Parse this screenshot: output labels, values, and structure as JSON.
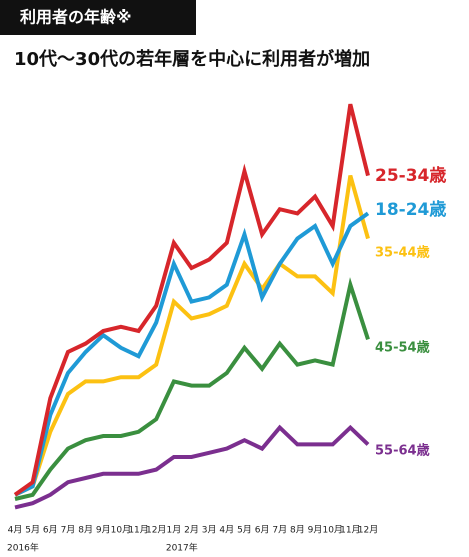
{
  "chart_data": {
    "type": "line",
    "header": "利用者の年齢※",
    "title": "10代～30代の若年層を中心に利用者が増加",
    "categories": [
      "4月",
      "5月",
      "6月",
      "7月",
      "8月",
      "9月",
      "10月",
      "11月",
      "12月",
      "1月",
      "2月",
      "3月",
      "4月",
      "5月",
      "6月",
      "7月",
      "8月",
      "9月",
      "10月",
      "11月",
      "12月"
    ],
    "year_labels": [
      "2016年",
      "2017年"
    ],
    "ylim": [
      0,
      100
    ],
    "series": [
      {
        "name": "25-34歳",
        "color": "#d7262b",
        "values": [
          6,
          9,
          29,
          40,
          42,
          45,
          46,
          45,
          51,
          66,
          60,
          62,
          66,
          83,
          68,
          74,
          73,
          77,
          70,
          99,
          82
        ]
      },
      {
        "name": "18-24歳",
        "color": "#1f9ad6",
        "values": [
          6,
          8,
          25,
          35,
          40,
          44,
          41,
          39,
          47,
          61,
          52,
          53,
          56,
          68,
          53,
          61,
          67,
          70,
          61,
          70,
          73
        ]
      },
      {
        "name": "35-44歳",
        "color": "#fcc112",
        "values": [
          6,
          8,
          21,
          30,
          33,
          33,
          34,
          34,
          37,
          52,
          48,
          49,
          51,
          61,
          55,
          61,
          58,
          58,
          54,
          82,
          67
        ]
      },
      {
        "name": "45-54歳",
        "color": "#3a8f3f",
        "values": [
          5,
          6,
          12,
          17,
          19,
          20,
          20,
          21,
          24,
          33,
          32,
          32,
          35,
          41,
          36,
          42,
          37,
          38,
          37,
          56,
          43
        ]
      },
      {
        "name": "55-64歳",
        "color": "#7b2f8f",
        "values": [
          3,
          4,
          6,
          9,
          10,
          11,
          11,
          11,
          12,
          15,
          15,
          16,
          17,
          19,
          17,
          22,
          18,
          18,
          18,
          22,
          18
        ]
      }
    ]
  }
}
